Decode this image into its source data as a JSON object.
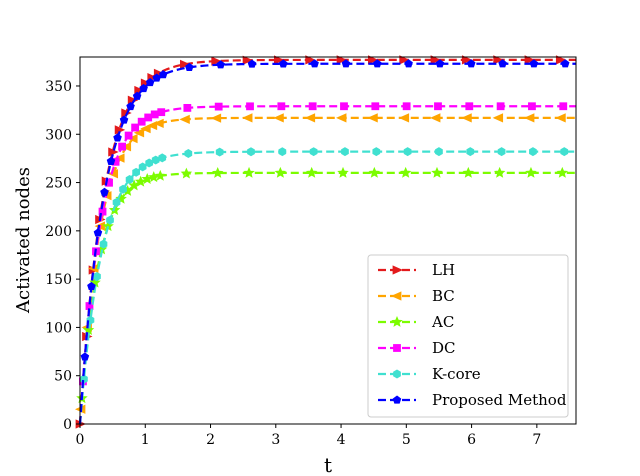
{
  "chart_data": {
    "type": "line",
    "title": "",
    "xlabel": "t",
    "ylabel": "Activated nodes",
    "xlim": [
      0,
      7.6
    ],
    "ylim": [
      0,
      380
    ],
    "xticks": [
      0,
      1,
      2,
      3,
      4,
      5,
      6,
      7
    ],
    "yticks": [
      0,
      50,
      100,
      150,
      200,
      250,
      300,
      350
    ],
    "grid": false,
    "legend_position": "lower-right",
    "series": [
      {
        "name": "LH",
        "color": "#e31a1c",
        "marker": "triangle-right",
        "plateau": 377,
        "rate": 2.75
      },
      {
        "name": "BC",
        "color": "#ffa500",
        "marker": "triangle-left",
        "plateau": 317,
        "rate": 3.3
      },
      {
        "name": "AC",
        "color": "#7cfc00",
        "marker": "star",
        "plateau": 260,
        "rate": 3.6
      },
      {
        "name": "DC",
        "color": "#ff00ff",
        "marker": "square",
        "plateau": 329,
        "rate": 3.2
      },
      {
        "name": "K-core",
        "color": "#40e0d0",
        "marker": "hexagon",
        "plateau": 282,
        "rate": 3.0
      },
      {
        "name": "Proposed Method",
        "color": "#0000ff",
        "marker": "pentagon",
        "plateau": 373,
        "rate": 2.75
      }
    ]
  }
}
